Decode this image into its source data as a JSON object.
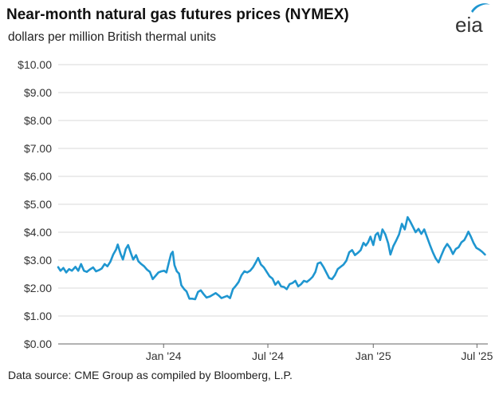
{
  "header": {
    "title": "Near-month natural gas futures prices (NYMEX)",
    "subtitle": "dollars per million British thermal units",
    "logo_text": "eia"
  },
  "footer": {
    "source": "Data source: CME Group as compiled by Bloomberg, L.P."
  },
  "colors": {
    "line": "#1f96d0",
    "grid": "#d9d9d9",
    "axis": "#666666",
    "logo_swoosh": "#1f96d0"
  },
  "chart_data": {
    "type": "line",
    "title": "Near-month natural gas futures prices (NYMEX)",
    "ylabel": "dollars per million British thermal units",
    "ylim": [
      0,
      10
    ],
    "y_ticks": [
      "$0.00",
      "$1.00",
      "$2.00",
      "$3.00",
      "$4.00",
      "$5.00",
      "$6.00",
      "$7.00",
      "$8.00",
      "$9.00",
      "$10.00"
    ],
    "y_tick_values": [
      0,
      1,
      2,
      3,
      4,
      5,
      6,
      7,
      8,
      9,
      10
    ],
    "xlim": [
      "2023-07-01",
      "2025-07-20"
    ],
    "x_ticks": [
      {
        "label": "Jan '24",
        "date": "2024-01-01"
      },
      {
        "label": "Jul '24",
        "date": "2024-07-01"
      },
      {
        "label": "Jan '25",
        "date": "2025-01-01"
      },
      {
        "label": "Jul '25",
        "date": "2025-07-01"
      }
    ],
    "grid": true,
    "series": [
      {
        "color": "#1f96d0",
        "points": [
          [
            "2023-07-01",
            2.75
          ],
          [
            "2023-07-05",
            2.62
          ],
          [
            "2023-07-10",
            2.72
          ],
          [
            "2023-07-15",
            2.56
          ],
          [
            "2023-07-20",
            2.68
          ],
          [
            "2023-07-25",
            2.62
          ],
          [
            "2023-07-31",
            2.76
          ],
          [
            "2023-08-05",
            2.62
          ],
          [
            "2023-08-10",
            2.86
          ],
          [
            "2023-08-15",
            2.62
          ],
          [
            "2023-08-20",
            2.58
          ],
          [
            "2023-08-25",
            2.66
          ],
          [
            "2023-08-31",
            2.74
          ],
          [
            "2023-09-05",
            2.6
          ],
          [
            "2023-09-10",
            2.64
          ],
          [
            "2023-09-15",
            2.7
          ],
          [
            "2023-09-20",
            2.86
          ],
          [
            "2023-09-25",
            2.78
          ],
          [
            "2023-09-30",
            2.94
          ],
          [
            "2023-10-05",
            3.2
          ],
          [
            "2023-10-10",
            3.38
          ],
          [
            "2023-10-13",
            3.56
          ],
          [
            "2023-10-18",
            3.22
          ],
          [
            "2023-10-22",
            3.02
          ],
          [
            "2023-10-27",
            3.4
          ],
          [
            "2023-10-31",
            3.54
          ],
          [
            "2023-11-05",
            3.24
          ],
          [
            "2023-11-09",
            3.02
          ],
          [
            "2023-11-14",
            3.18
          ],
          [
            "2023-11-18",
            2.96
          ],
          [
            "2023-11-23",
            2.86
          ],
          [
            "2023-11-28",
            2.78
          ],
          [
            "2023-12-03",
            2.66
          ],
          [
            "2023-12-08",
            2.58
          ],
          [
            "2023-12-13",
            2.32
          ],
          [
            "2023-12-18",
            2.44
          ],
          [
            "2023-12-23",
            2.56
          ],
          [
            "2023-12-28",
            2.6
          ],
          [
            "2024-01-02",
            2.62
          ],
          [
            "2024-01-06",
            2.56
          ],
          [
            "2024-01-10",
            2.9
          ],
          [
            "2024-01-14",
            3.22
          ],
          [
            "2024-01-17",
            3.3
          ],
          [
            "2024-01-20",
            2.82
          ],
          [
            "2024-01-24",
            2.6
          ],
          [
            "2024-01-28",
            2.52
          ],
          [
            "2024-02-01",
            2.1
          ],
          [
            "2024-02-06",
            1.96
          ],
          [
            "2024-02-10",
            1.88
          ],
          [
            "2024-02-15",
            1.62
          ],
          [
            "2024-02-20",
            1.62
          ],
          [
            "2024-02-25",
            1.6
          ],
          [
            "2024-03-01",
            1.86
          ],
          [
            "2024-03-06",
            1.92
          ],
          [
            "2024-03-11",
            1.78
          ],
          [
            "2024-03-16",
            1.66
          ],
          [
            "2024-03-22",
            1.7
          ],
          [
            "2024-03-27",
            1.76
          ],
          [
            "2024-04-01",
            1.82
          ],
          [
            "2024-04-06",
            1.74
          ],
          [
            "2024-04-11",
            1.64
          ],
          [
            "2024-04-16",
            1.68
          ],
          [
            "2024-04-21",
            1.72
          ],
          [
            "2024-04-26",
            1.64
          ],
          [
            "2024-05-01",
            1.96
          ],
          [
            "2024-05-06",
            2.08
          ],
          [
            "2024-05-11",
            2.22
          ],
          [
            "2024-05-16",
            2.46
          ],
          [
            "2024-05-21",
            2.6
          ],
          [
            "2024-05-26",
            2.56
          ],
          [
            "2024-05-31",
            2.62
          ],
          [
            "2024-06-05",
            2.74
          ],
          [
            "2024-06-10",
            2.92
          ],
          [
            "2024-06-14",
            3.08
          ],
          [
            "2024-06-19",
            2.84
          ],
          [
            "2024-06-24",
            2.74
          ],
          [
            "2024-06-29",
            2.58
          ],
          [
            "2024-07-04",
            2.42
          ],
          [
            "2024-07-09",
            2.34
          ],
          [
            "2024-07-14",
            2.12
          ],
          [
            "2024-07-19",
            2.24
          ],
          [
            "2024-07-24",
            2.06
          ],
          [
            "2024-07-29",
            2.04
          ],
          [
            "2024-08-03",
            1.96
          ],
          [
            "2024-08-08",
            2.14
          ],
          [
            "2024-08-13",
            2.18
          ],
          [
            "2024-08-18",
            2.26
          ],
          [
            "2024-08-23",
            2.06
          ],
          [
            "2024-08-28",
            2.14
          ],
          [
            "2024-09-02",
            2.26
          ],
          [
            "2024-09-07",
            2.22
          ],
          [
            "2024-09-12",
            2.3
          ],
          [
            "2024-09-17",
            2.4
          ],
          [
            "2024-09-22",
            2.58
          ],
          [
            "2024-09-26",
            2.88
          ],
          [
            "2024-10-01",
            2.92
          ],
          [
            "2024-10-06",
            2.76
          ],
          [
            "2024-10-11",
            2.56
          ],
          [
            "2024-10-16",
            2.36
          ],
          [
            "2024-10-21",
            2.32
          ],
          [
            "2024-10-26",
            2.46
          ],
          [
            "2024-10-31",
            2.68
          ],
          [
            "2024-11-05",
            2.76
          ],
          [
            "2024-11-10",
            2.84
          ],
          [
            "2024-11-15",
            2.98
          ],
          [
            "2024-11-20",
            3.28
          ],
          [
            "2024-11-25",
            3.36
          ],
          [
            "2024-11-30",
            3.18
          ],
          [
            "2024-12-05",
            3.26
          ],
          [
            "2024-12-10",
            3.36
          ],
          [
            "2024-12-15",
            3.62
          ],
          [
            "2024-12-19",
            3.52
          ],
          [
            "2024-12-23",
            3.64
          ],
          [
            "2024-12-27",
            3.84
          ],
          [
            "2025-01-01",
            3.54
          ],
          [
            "2025-01-05",
            3.9
          ],
          [
            "2025-01-09",
            3.98
          ],
          [
            "2025-01-13",
            3.72
          ],
          [
            "2025-01-17",
            4.1
          ],
          [
            "2025-01-22",
            3.92
          ],
          [
            "2025-01-27",
            3.6
          ],
          [
            "2025-01-31",
            3.2
          ],
          [
            "2025-02-05",
            3.5
          ],
          [
            "2025-02-10",
            3.7
          ],
          [
            "2025-02-15",
            3.92
          ],
          [
            "2025-02-20",
            4.3
          ],
          [
            "2025-02-25",
            4.1
          ],
          [
            "2025-03-02",
            4.54
          ],
          [
            "2025-03-06",
            4.4
          ],
          [
            "2025-03-11",
            4.2
          ],
          [
            "2025-03-16",
            4.0
          ],
          [
            "2025-03-21",
            4.12
          ],
          [
            "2025-03-26",
            3.94
          ],
          [
            "2025-03-31",
            4.1
          ],
          [
            "2025-04-05",
            3.82
          ],
          [
            "2025-04-10",
            3.54
          ],
          [
            "2025-04-15",
            3.28
          ],
          [
            "2025-04-20",
            3.06
          ],
          [
            "2025-04-25",
            2.92
          ],
          [
            "2025-04-30",
            3.18
          ],
          [
            "2025-05-05",
            3.42
          ],
          [
            "2025-05-10",
            3.58
          ],
          [
            "2025-05-15",
            3.44
          ],
          [
            "2025-05-20",
            3.22
          ],
          [
            "2025-05-25",
            3.4
          ],
          [
            "2025-05-30",
            3.46
          ],
          [
            "2025-06-04",
            3.64
          ],
          [
            "2025-06-09",
            3.72
          ],
          [
            "2025-06-13",
            3.88
          ],
          [
            "2025-06-16",
            4.02
          ],
          [
            "2025-06-20",
            3.86
          ],
          [
            "2025-06-25",
            3.62
          ],
          [
            "2025-06-30",
            3.44
          ],
          [
            "2025-07-05",
            3.38
          ],
          [
            "2025-07-10",
            3.3
          ],
          [
            "2025-07-15",
            3.2
          ]
        ]
      }
    ]
  }
}
